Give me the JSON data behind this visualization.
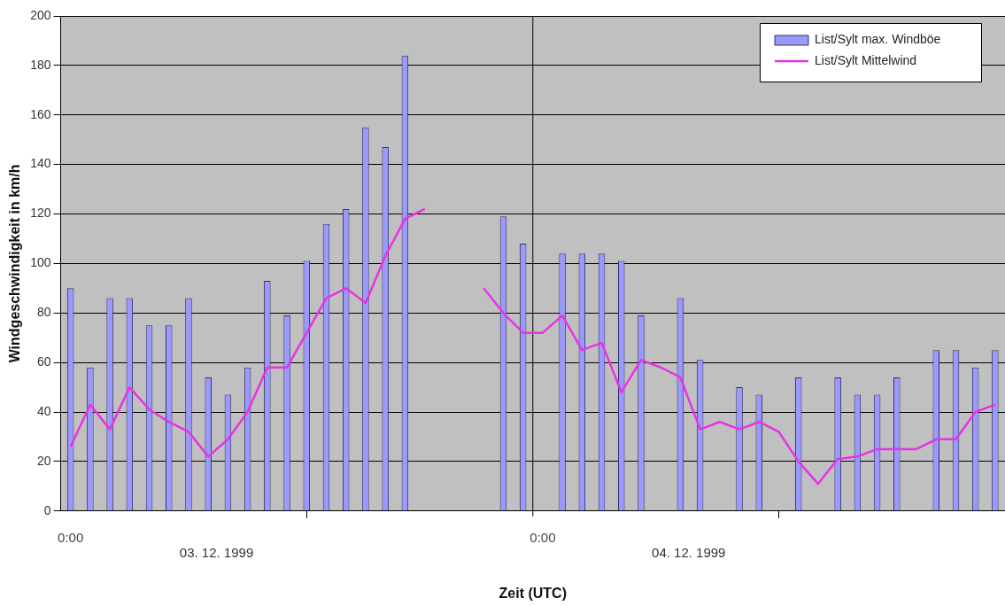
{
  "chart_data": {
    "type": "bar",
    "xlabel": "Zeit (UTC)",
    "ylabel": "Windgeschwindigkeit in km/h",
    "x": [
      0,
      1,
      2,
      3,
      4,
      5,
      6,
      7,
      8,
      9,
      10,
      11,
      12,
      13,
      14,
      15,
      16,
      17,
      18,
      19,
      20,
      21,
      22,
      23,
      24,
      25,
      26,
      27,
      28,
      29,
      30,
      31,
      32,
      33,
      34,
      35,
      36,
      37,
      38,
      39,
      40,
      41,
      42,
      43,
      44,
      45,
      46,
      47
    ],
    "xlim": [
      -0.5,
      47.5
    ],
    "xticks": [
      {
        "value": 0,
        "label": "0:00"
      },
      {
        "value": 24,
        "label": "0:00"
      }
    ],
    "series": [
      {
        "name": "List/Sylt max. Windböe",
        "color": "#9999ff",
        "values": [
          90,
          58,
          86,
          86,
          75,
          75,
          86,
          54,
          47,
          58,
          93,
          79,
          101,
          116,
          122,
          155,
          147,
          184,
          null,
          null,
          null,
          null,
          119,
          108,
          null,
          104,
          104,
          104,
          101,
          79,
          null,
          86,
          61,
          null,
          50,
          47,
          null,
          54,
          null,
          54,
          47,
          47,
          54,
          null,
          65,
          65,
          58,
          65
        ]
      },
      {
        "name": "List/Sylt Mittelwind",
        "type": "line",
        "color": "#e633e6",
        "values": [
          26,
          43,
          33,
          50,
          41,
          36,
          32,
          22,
          29,
          40,
          58,
          58,
          72,
          86,
          90,
          84,
          103,
          118,
          122,
          null,
          null,
          90,
          80,
          72,
          72,
          79,
          65,
          68,
          48,
          61,
          58,
          54,
          33,
          36,
          33,
          36,
          32,
          20,
          11,
          21,
          22,
          25,
          25,
          25,
          29,
          29,
          40,
          43
        ]
      }
    ],
    "ylim": [
      0,
      200
    ],
    "yticks": [
      0,
      20,
      40,
      60,
      80,
      100,
      120,
      140,
      160,
      180,
      200
    ],
    "grid": "y",
    "legend": "top right",
    "marker": "none",
    "ref_lines": [
      {
        "axis": "x",
        "value": 23.5,
        "color": "#000000"
      }
    ],
    "annotations": [
      "03. 12. 1999",
      "04. 12. 1999"
    ]
  }
}
